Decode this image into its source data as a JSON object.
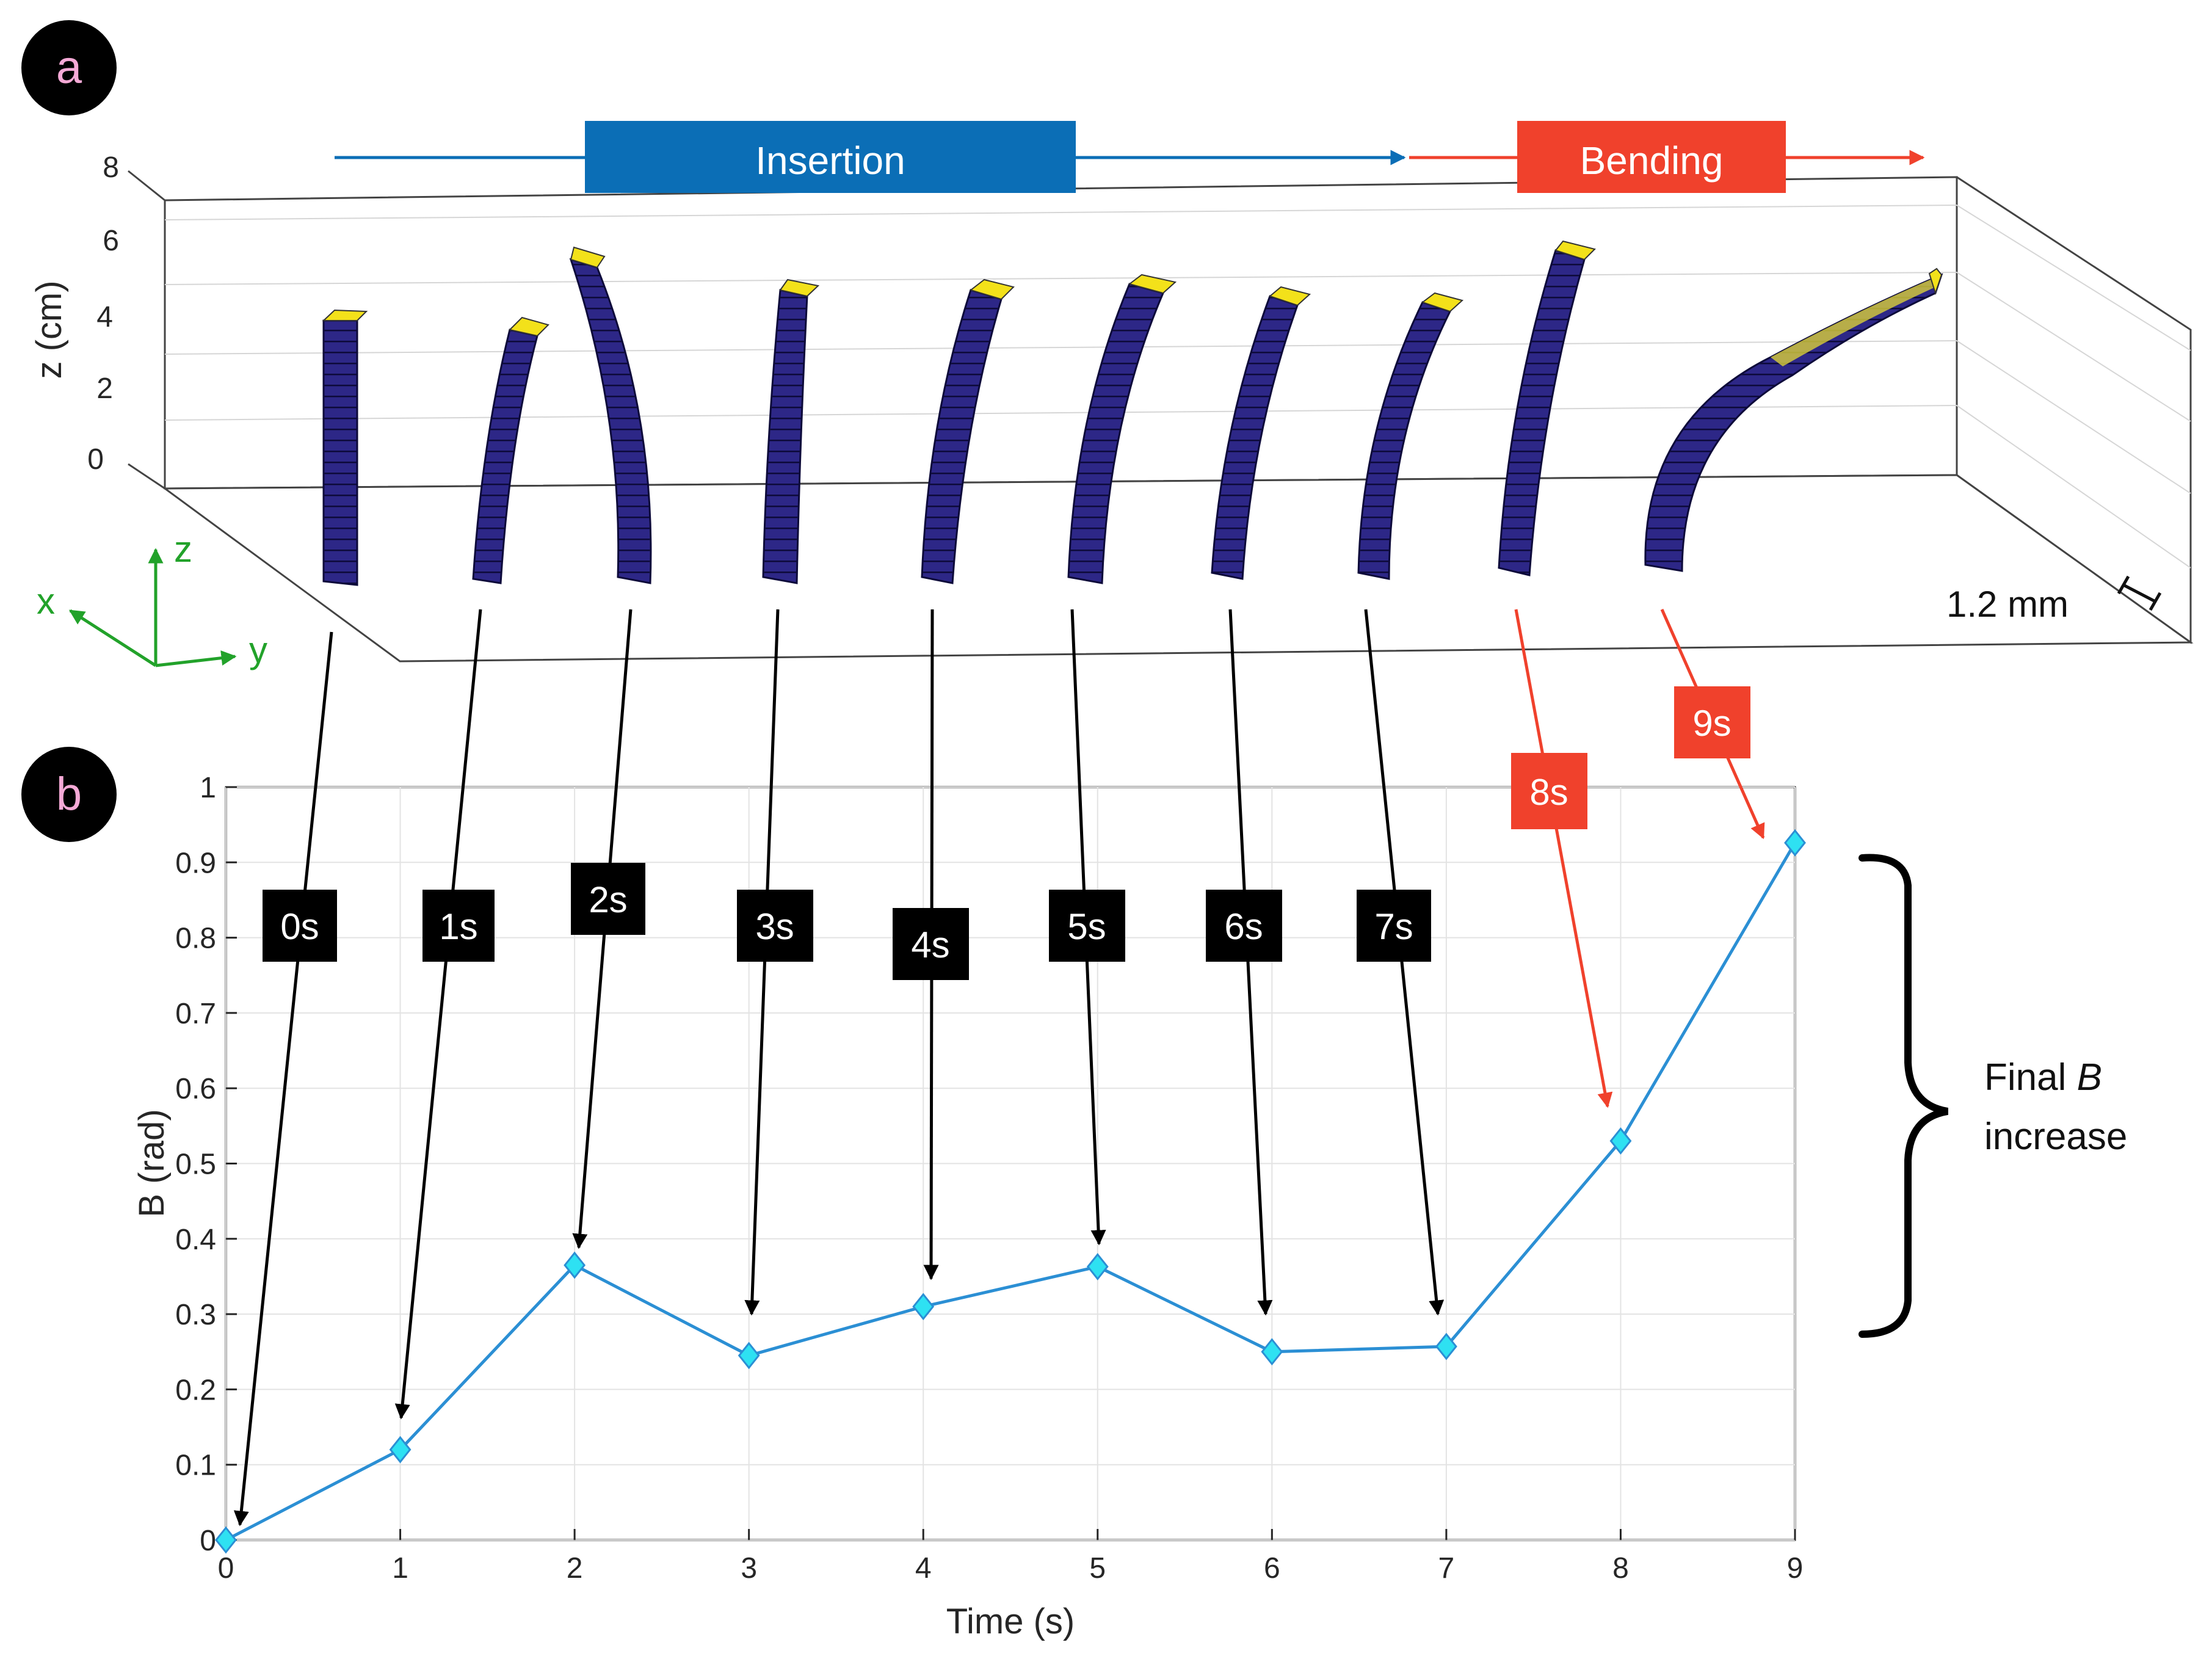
{
  "panels": {
    "a": {
      "label": "a"
    },
    "b": {
      "label": "b"
    }
  },
  "panel_a": {
    "phase_insertion": "Insertion",
    "phase_bending": "Bending",
    "z_axis": {
      "label": "z (cm)",
      "ticks": [
        "0",
        "2",
        "4",
        "6",
        "8"
      ]
    },
    "triad": {
      "x": "x",
      "y": "y",
      "z": "z"
    },
    "scale_label": "1.2 mm",
    "colors": {
      "insertion": "#0b6eb6",
      "bending": "#f0412c",
      "needle_body": "#2a2580",
      "needle_tip": "#f3e11a",
      "triad": "#22a22a"
    }
  },
  "time_labels": [
    "0s",
    "1s",
    "2s",
    "3s",
    "4s",
    "5s",
    "6s",
    "7s",
    "8s",
    "9s"
  ],
  "brace_label": {
    "line1": "Final ",
    "italic": "B",
    "line2": "increase"
  },
  "chart_data": {
    "type": "line",
    "title": "",
    "xlabel": "Time (s)",
    "ylabel": "B (rad)",
    "xlim": [
      0,
      9
    ],
    "ylim": [
      0,
      1
    ],
    "xticks": [
      "0",
      "1",
      "2",
      "3",
      "4",
      "5",
      "6",
      "7",
      "8",
      "9"
    ],
    "yticks": [
      "0",
      "0.1",
      "0.2",
      "0.3",
      "0.4",
      "0.5",
      "0.6",
      "0.7",
      "0.8",
      "0.9",
      "1"
    ],
    "grid": true,
    "x": [
      0,
      1,
      2,
      3,
      4,
      5,
      6,
      7,
      8,
      9
    ],
    "series": [
      {
        "values": [
          0,
          0.12,
          0.365,
          0.245,
          0.31,
          0.363,
          0.25,
          0.257,
          0.53,
          0.926
        ],
        "color": "#2b8fd4",
        "marker_color": "#2ee1f2"
      }
    ]
  }
}
